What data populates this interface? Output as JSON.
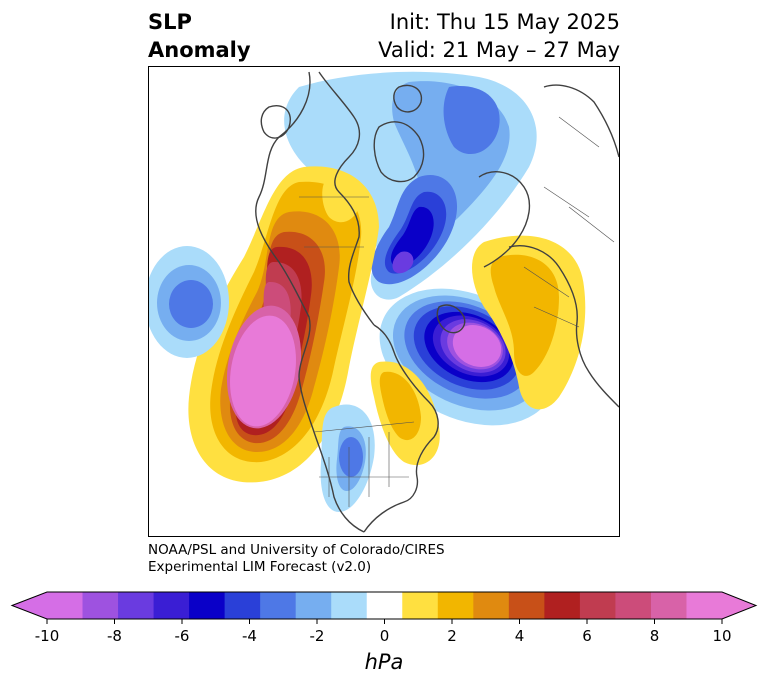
{
  "title": {
    "left_line1": "SLP",
    "left_line2": "Anomaly",
    "right_line1": "Init: Thu 15 May 2025",
    "right_line2": "Valid: 21 May – 27 May"
  },
  "credit": {
    "line1": "NOAA/PSL and University of Colorado/CIRES",
    "line2": "Experimental LIM Forecast (v2.0)"
  },
  "colorbar": {
    "label": "hPa",
    "tick_labels": [
      "-10",
      "-8",
      "-6",
      "-4",
      "-2",
      "0",
      "2",
      "4",
      "6",
      "8",
      "10"
    ],
    "colors": [
      "#d56ee6",
      "#9e52e0",
      "#6a3be0",
      "#3a1ed4",
      "#0a00c8",
      "#2a40d8",
      "#4e78e6",
      "#76aef0",
      "#aadcfa",
      "#ffffff",
      "#ffe040",
      "#f2b600",
      "#e08a10",
      "#c85018",
      "#b02020",
      "#c03c50",
      "#cc4c7a",
      "#d862a8",
      "#e87ad8"
    ],
    "under_color": "#d56ee6",
    "over_color": "#e87ad8"
  }
}
